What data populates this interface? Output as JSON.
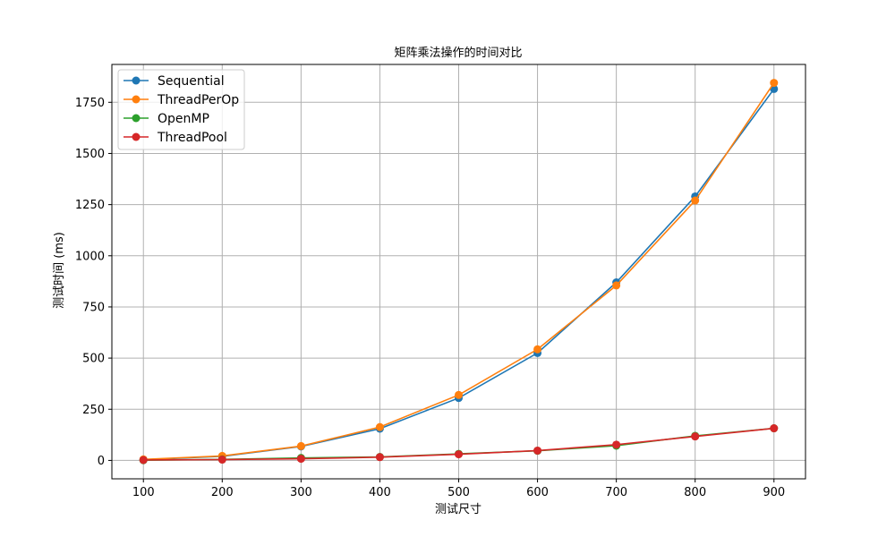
{
  "chart_data": {
    "type": "line",
    "title": "矩阵乘法操作的时间对比",
    "xlabel": "测试尺寸",
    "ylabel": "测试时间 (ms)",
    "x": [
      100,
      200,
      300,
      400,
      500,
      600,
      700,
      800,
      900
    ],
    "xlim": [
      60,
      940
    ],
    "ylim": [
      -90,
      1935
    ],
    "xticks": [
      100,
      200,
      300,
      400,
      500,
      600,
      700,
      800,
      900
    ],
    "yticks": [
      0,
      250,
      500,
      750,
      1000,
      1250,
      1500,
      1750
    ],
    "grid": true,
    "legend_position": "upper-left",
    "series": [
      {
        "name": "Sequential",
        "color": "#1f77b4",
        "values": [
          3,
          20,
          68,
          155,
          305,
          525,
          870,
          1290,
          1815
        ]
      },
      {
        "name": "ThreadPerOp",
        "color": "#ff7f0e",
        "values": [
          5,
          22,
          70,
          163,
          320,
          543,
          855,
          1270,
          1845
        ]
      },
      {
        "name": "OpenMP",
        "color": "#2ca02c",
        "values": [
          1,
          5,
          12,
          17,
          32,
          47,
          72,
          120,
          157
        ]
      },
      {
        "name": "ThreadPool",
        "color": "#d62728",
        "values": [
          2,
          4,
          8,
          16,
          30,
          48,
          77,
          117,
          157
        ]
      }
    ]
  }
}
